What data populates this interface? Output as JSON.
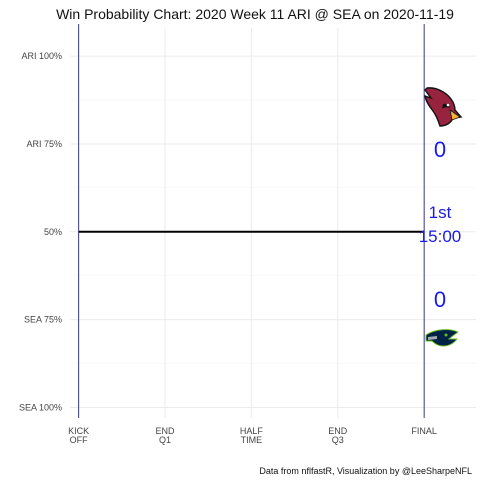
{
  "chart_data": {
    "type": "line",
    "title": "Win Probability Chart: 2020 Week 11 ARI @ SEA on 2020-11-19",
    "caption": "Data from nflfastR, Visualization by @LeeSharpeNFL",
    "x_ticks": [
      {
        "value": 0,
        "lines": [
          "KICK",
          "OFF"
        ]
      },
      {
        "value": 1,
        "lines": [
          "END",
          "Q1"
        ]
      },
      {
        "value": 2,
        "lines": [
          "HALF",
          "TIME"
        ]
      },
      {
        "value": 3,
        "lines": [
          "END",
          "Q3"
        ]
      },
      {
        "value": 4,
        "lines": [
          "FINAL"
        ]
      }
    ],
    "xlim": [
      -0.1,
      4.6
    ],
    "y_ticks": [
      {
        "value": 1.0,
        "label": "ARI 100%"
      },
      {
        "value": 0.75,
        "label": "ARI 75%"
      },
      {
        "value": 0.5,
        "label": "50%"
      },
      {
        "value": 0.25,
        "label": "SEA 75%"
      },
      {
        "value": 0.0,
        "label": "SEA 100%"
      }
    ],
    "ylim": [
      -0.03,
      1.08
    ],
    "grid": true,
    "series": [
      {
        "x": [
          0,
          4
        ],
        "y": [
          0.5,
          0.5
        ],
        "color": "#000000"
      }
    ],
    "vertical_lines": [
      {
        "x": 0,
        "color": "#3b3b8c"
      },
      {
        "x": 4,
        "color": "#3b3b8c"
      }
    ],
    "scoreboard": {
      "away_score": "0",
      "home_score": "0",
      "quarter": "1st",
      "clock": "15:00",
      "color": "#1a1ae6"
    },
    "away_logo": "cardinals-logo",
    "home_logo": "seahawks-logo"
  }
}
